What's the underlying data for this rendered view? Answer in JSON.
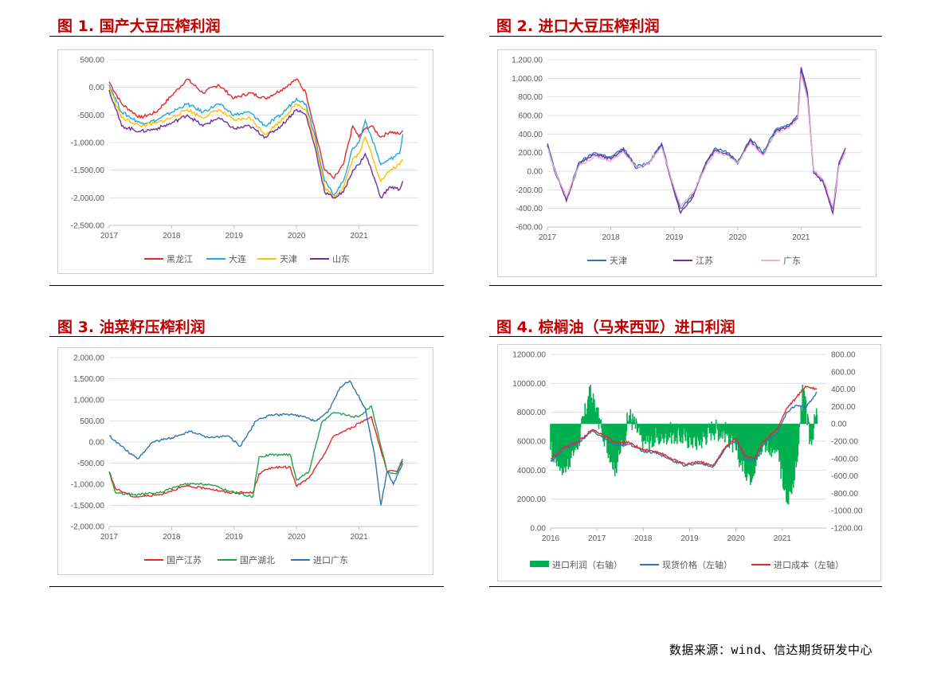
{
  "figures": [
    {
      "title": "图 1.  国产大豆压榨利润"
    },
    {
      "title": "图 2.  进口大豆压榨利润"
    },
    {
      "title": "图 3.  油菜籽压榨利润"
    },
    {
      "title": "图 4.  棕榈油（马来西亚）进口利润"
    }
  ],
  "source": "数据来源：wind、信达期货研发中心",
  "chart_data": [
    {
      "type": "line",
      "x_categories": [
        "2017",
        "2018",
        "2019",
        "2020",
        "2021"
      ],
      "ylim": [
        -2500,
        500
      ],
      "y_ticks": [
        "500.00",
        "0.00",
        "-500.00",
        "-1,000.00",
        "-1,500.00",
        "-2,000.00",
        "-2,500.00"
      ],
      "legend_position": "bottom",
      "series": [
        {
          "name": "黑龙江",
          "color": "#e62828",
          "x": [
            2017.0,
            2017.2,
            2017.5,
            2017.75,
            2018.0,
            2018.25,
            2018.5,
            2018.75,
            2019.0,
            2019.25,
            2019.5,
            2019.75,
            2020.0,
            2020.15,
            2020.3,
            2020.45,
            2020.6,
            2020.75,
            2020.9,
            2021.0,
            2021.1,
            2021.2,
            2021.35,
            2021.5,
            2021.65,
            2021.7
          ],
          "y": [
            100,
            -300,
            -550,
            -450,
            -150,
            150,
            -100,
            50,
            -200,
            -100,
            -200,
            -50,
            150,
            -100,
            -800,
            -1500,
            -1650,
            -1400,
            -700,
            -900,
            -750,
            -700,
            -900,
            -800,
            -850,
            -780
          ]
        },
        {
          "name": "大连",
          "color": "#22a8e0",
          "x": [
            2017.0,
            2017.2,
            2017.5,
            2017.75,
            2018.0,
            2018.25,
            2018.5,
            2018.75,
            2019.0,
            2019.25,
            2019.5,
            2019.75,
            2020.0,
            2020.15,
            2020.3,
            2020.45,
            2020.6,
            2020.75,
            2020.9,
            2021.0,
            2021.1,
            2021.2,
            2021.35,
            2021.5,
            2021.65,
            2021.7
          ],
          "y": [
            50,
            -450,
            -650,
            -600,
            -450,
            -300,
            -450,
            -300,
            -500,
            -450,
            -700,
            -500,
            -200,
            -300,
            -900,
            -1700,
            -1950,
            -1700,
            -1100,
            -1000,
            -600,
            -900,
            -1400,
            -1300,
            -1200,
            -850
          ]
        },
        {
          "name": "天津",
          "color": "#ffc000",
          "x": [
            2017.0,
            2017.2,
            2017.5,
            2017.75,
            2018.0,
            2018.25,
            2018.5,
            2018.75,
            2019.0,
            2019.25,
            2019.5,
            2019.75,
            2020.0,
            2020.15,
            2020.3,
            2020.45,
            2020.6,
            2020.75,
            2020.9,
            2021.0,
            2021.1,
            2021.2,
            2021.35,
            2021.5,
            2021.65,
            2021.7
          ],
          "y": [
            0,
            -550,
            -700,
            -650,
            -550,
            -400,
            -550,
            -400,
            -600,
            -550,
            -850,
            -600,
            -300,
            -400,
            -1000,
            -1800,
            -2000,
            -1800,
            -1300,
            -1200,
            -900,
            -1200,
            -1700,
            -1500,
            -1400,
            -1300
          ]
        },
        {
          "name": "山东",
          "color": "#7030a0",
          "x": [
            2017.0,
            2017.2,
            2017.5,
            2017.75,
            2018.0,
            2018.25,
            2018.5,
            2018.75,
            2019.0,
            2019.25,
            2019.5,
            2019.75,
            2020.0,
            2020.15,
            2020.3,
            2020.45,
            2020.6,
            2020.75,
            2020.9,
            2021.0,
            2021.1,
            2021.2,
            2021.35,
            2021.5,
            2021.65,
            2021.7
          ],
          "y": [
            -50,
            -700,
            -800,
            -750,
            -650,
            -500,
            -700,
            -550,
            -750,
            -700,
            -900,
            -700,
            -400,
            -500,
            -1100,
            -1900,
            -2000,
            -1900,
            -1500,
            -1400,
            -1200,
            -1500,
            -2000,
            -1800,
            -1850,
            -1700
          ]
        }
      ]
    },
    {
      "type": "line",
      "x_categories": [
        "2017",
        "2018",
        "2019",
        "2020",
        "2021"
      ],
      "ylim": [
        -600,
        1200
      ],
      "y_ticks": [
        "1,200.00",
        "1,000.00",
        "800.00",
        "600.00",
        "400.00",
        "200.00",
        "0.00",
        "-200.00",
        "-400.00",
        "-600.00"
      ],
      "legend_position": "bottom",
      "series": [
        {
          "name": "天津",
          "color": "#2e75b6",
          "x": [
            2017.0,
            2017.1,
            2017.3,
            2017.5,
            2017.75,
            2018.0,
            2018.2,
            2018.4,
            2018.6,
            2018.8,
            2019.0,
            2019.1,
            2019.3,
            2019.5,
            2019.65,
            2019.85,
            2020.0,
            2020.2,
            2020.4,
            2020.6,
            2020.8,
            2020.95,
            2021.0,
            2021.1,
            2021.2,
            2021.35,
            2021.5,
            2021.6,
            2021.7
          ],
          "y": [
            300,
            50,
            -300,
            100,
            200,
            150,
            250,
            50,
            100,
            300,
            -200,
            -400,
            -250,
            100,
            250,
            200,
            100,
            350,
            200,
            450,
            500,
            600,
            1100,
            800,
            0,
            -100,
            -400,
            100,
            200
          ]
        },
        {
          "name": "江苏",
          "color": "#7030a0",
          "x": [
            2017.0,
            2017.1,
            2017.3,
            2017.5,
            2017.75,
            2018.0,
            2018.2,
            2018.4,
            2018.6,
            2018.8,
            2019.0,
            2019.1,
            2019.3,
            2019.5,
            2019.65,
            2019.85,
            2020.0,
            2020.2,
            2020.4,
            2020.6,
            2020.8,
            2020.95,
            2021.0,
            2021.1,
            2021.2,
            2021.35,
            2021.5,
            2021.6,
            2021.7
          ],
          "y": [
            280,
            30,
            -320,
            80,
            180,
            130,
            230,
            30,
            80,
            280,
            -220,
            -450,
            -270,
            80,
            230,
            180,
            80,
            330,
            180,
            430,
            480,
            580,
            1120,
            850,
            -20,
            -120,
            -450,
            80,
            250
          ]
        },
        {
          "name": "广东",
          "color": "#e8b4c8",
          "x": [
            2017.0,
            2017.1,
            2017.3,
            2017.5,
            2017.75,
            2018.0,
            2018.2,
            2018.4,
            2018.6,
            2018.8,
            2019.0,
            2019.1,
            2019.3,
            2019.5,
            2019.65,
            2019.85,
            2020.0,
            2020.2,
            2020.4,
            2020.6,
            2020.8,
            2020.95,
            2021.0,
            2021.1,
            2021.2,
            2021.35,
            2021.5,
            2021.6,
            2021.7
          ],
          "y": [
            260,
            40,
            -280,
            60,
            160,
            110,
            210,
            40,
            90,
            260,
            -180,
            -380,
            -230,
            60,
            210,
            170,
            90,
            310,
            170,
            410,
            460,
            560,
            1050,
            780,
            10,
            -90,
            -380,
            60,
            220
          ]
        }
      ]
    },
    {
      "type": "line",
      "x_categories": [
        "2017",
        "2018",
        "2019",
        "2020",
        "2021"
      ],
      "ylim": [
        -2000,
        2000
      ],
      "y_ticks": [
        "2,000.00",
        "1,500.00",
        "1,000.00",
        "500.00",
        "0.00",
        "-500.00",
        "-1,000.00",
        "-1,500.00",
        "-2,000.00"
      ],
      "legend_position": "bottom",
      "series": [
        {
          "name": "国产江苏",
          "color": "#e62828",
          "x": [
            2017.0,
            2017.1,
            2017.4,
            2017.8,
            2018.2,
            2018.6,
            2018.9,
            2019.3,
            2019.4,
            2019.6,
            2019.9,
            2020.0,
            2020.2,
            2020.4,
            2020.6,
            2020.9,
            2021.0,
            2021.2,
            2021.35,
            2021.45,
            2021.6,
            2021.7
          ],
          "y": [
            -700,
            -1100,
            -1300,
            -1250,
            -1050,
            -1100,
            -1200,
            -1200,
            -750,
            -600,
            -600,
            -1050,
            -850,
            -400,
            150,
            350,
            450,
            600,
            -200,
            -700,
            -700,
            -450
          ]
        },
        {
          "name": "国产湖北",
          "color": "#21a249",
          "x": [
            2017.0,
            2017.1,
            2017.4,
            2017.8,
            2018.2,
            2018.6,
            2018.9,
            2019.3,
            2019.4,
            2019.6,
            2019.9,
            2020.0,
            2020.2,
            2020.4,
            2020.6,
            2020.9,
            2021.0,
            2021.2,
            2021.35,
            2021.45,
            2021.6,
            2021.7
          ],
          "y": [
            -700,
            -1200,
            -1250,
            -1200,
            -1000,
            -1000,
            -1150,
            -1300,
            -350,
            -300,
            -300,
            -900,
            -700,
            450,
            700,
            600,
            600,
            850,
            -100,
            -700,
            -750,
            -400
          ]
        },
        {
          "name": "进口广东",
          "color": "#2e75b6",
          "x": [
            2017.0,
            2017.2,
            2017.45,
            2017.7,
            2018.0,
            2018.3,
            2018.6,
            2018.9,
            2019.1,
            2019.35,
            2019.6,
            2019.9,
            2020.1,
            2020.3,
            2020.5,
            2020.7,
            2020.85,
            2020.95,
            2021.1,
            2021.25,
            2021.35,
            2021.45,
            2021.55,
            2021.7
          ],
          "y": [
            150,
            -100,
            -400,
            0,
            100,
            250,
            100,
            150,
            -100,
            500,
            650,
            650,
            600,
            500,
            700,
            1300,
            1450,
            1200,
            800,
            -300,
            -1500,
            -700,
            -1000,
            -500
          ]
        }
      ]
    },
    {
      "type": "bar-line-combo",
      "x_categories": [
        "2016",
        "2017",
        "2018",
        "2019",
        "2020",
        "2021"
      ],
      "ylim_left": [
        0,
        12000
      ],
      "ylim_right": [
        -1200,
        800
      ],
      "y_ticks_left": [
        "12000.00",
        "10000.00",
        "8000.00",
        "6000.00",
        "4000.00",
        "2000.00",
        "0.00"
      ],
      "y_ticks_right": [
        "800.00",
        "600.00",
        "400.00",
        "200.00",
        "0.00",
        "-200.00",
        "-400.00",
        "-600.00",
        "-800.00",
        "-1000.00",
        "-1200.00"
      ],
      "legend_position": "bottom",
      "series": [
        {
          "name": "进口利润（右轴）",
          "color": "#00b050",
          "axis": "right",
          "x": [
            2016.0,
            2016.3,
            2016.6,
            2016.85,
            2017.1,
            2017.4,
            2017.7,
            2018.0,
            2018.3,
            2018.6,
            2018.9,
            2019.2,
            2019.5,
            2019.8,
            2020.0,
            2020.3,
            2020.6,
            2020.9,
            2021.1,
            2021.3,
            2021.45,
            2021.6,
            2021.75
          ],
          "y": [
            -300,
            -500,
            -200,
            350,
            -50,
            -500,
            100,
            -200,
            -150,
            -100,
            -150,
            -200,
            -50,
            -100,
            -300,
            -600,
            -200,
            -300,
            -900,
            -500,
            400,
            -200,
            100
          ]
        },
        {
          "name": "现货价格（左轴）",
          "color": "#2e75b6",
          "axis": "left",
          "x": [
            2016.0,
            2016.3,
            2016.6,
            2016.9,
            2017.1,
            2017.4,
            2017.7,
            2018.0,
            2018.3,
            2018.6,
            2018.9,
            2019.2,
            2019.5,
            2019.8,
            2020.0,
            2020.2,
            2020.4,
            2020.6,
            2020.9,
            2021.1,
            2021.3,
            2021.5,
            2021.75
          ],
          "y": [
            4600,
            5500,
            5900,
            6700,
            6300,
            5700,
            5800,
            5300,
            5200,
            4700,
            4300,
            4500,
            4200,
            5600,
            6000,
            4800,
            4600,
            5800,
            6600,
            8000,
            8500,
            8300,
            9400
          ]
        },
        {
          "name": "进口成本（左轴）",
          "color": "#e62828",
          "axis": "left",
          "x": [
            2016.0,
            2016.3,
            2016.6,
            2016.9,
            2017.1,
            2017.4,
            2017.7,
            2018.0,
            2018.3,
            2018.6,
            2018.9,
            2019.2,
            2019.5,
            2019.8,
            2020.0,
            2020.2,
            2020.4,
            2020.6,
            2020.9,
            2021.1,
            2021.3,
            2021.5,
            2021.75
          ],
          "y": [
            4800,
            5600,
            6000,
            6800,
            6500,
            5900,
            5900,
            5400,
            5300,
            4800,
            4400,
            4600,
            4300,
            5700,
            6200,
            5000,
            4800,
            6000,
            6900,
            8300,
            9000,
            9800,
            9600
          ]
        }
      ]
    }
  ]
}
